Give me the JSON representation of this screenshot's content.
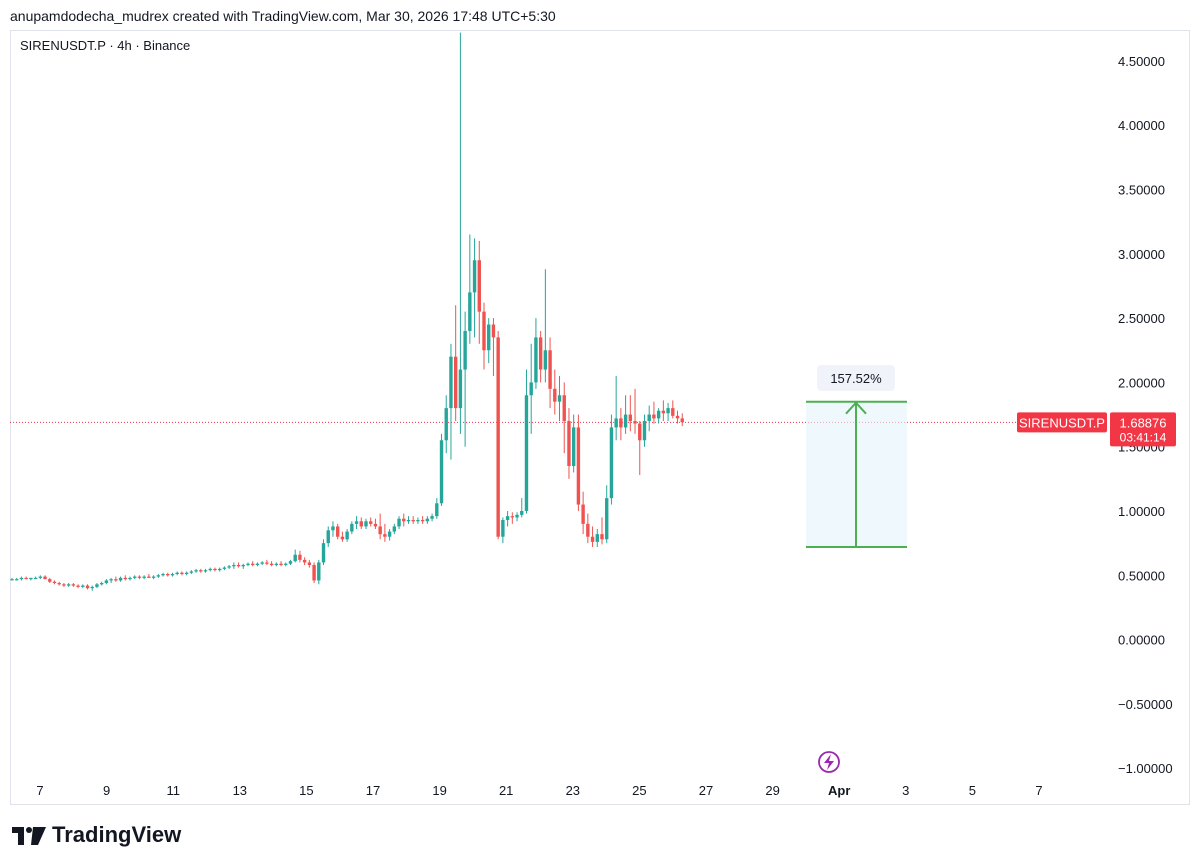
{
  "header": {
    "caption": "anupamdodecha_mudrex created with TradingView.com, Mar 30, 2026 17:48 UTC+5:30"
  },
  "symbol": {
    "label": "SIRENUSDT.P · 4h · Binance"
  },
  "price_tag": {
    "symbol": "SIRENUSDT.P",
    "price": "1.68876",
    "countdown": "03:41:14"
  },
  "measure": {
    "label": "157.52%"
  },
  "footer": {
    "brand": "TradingView"
  },
  "colors": {
    "up": "#26a69a",
    "down": "#ef5350",
    "measure": "#4caf50",
    "tag": "#f23645",
    "alert": "#9c27b0"
  },
  "icons": {
    "alert": "lightning-icon",
    "logo": "tradingview-logo-icon"
  },
  "chart_data": {
    "type": "candlestick",
    "y_ticks": [
      "4.50000",
      "4.00000",
      "3.50000",
      "3.00000",
      "2.50000",
      "2.00000",
      "1.50000",
      "1.00000",
      "0.50000",
      "0.00000",
      "−0.50000",
      "−1.00000"
    ],
    "x_ticks": [
      "7",
      "9",
      "11",
      "13",
      "15",
      "17",
      "19",
      "21",
      "23",
      "25",
      "27",
      "29",
      "Apr",
      "3",
      "5",
      "7"
    ],
    "ylim": [
      -1.0,
      4.72
    ],
    "last_price": 1.68876,
    "measure_range": {
      "from": 0.72,
      "to": 1.85,
      "change_pct": "157.52%"
    },
    "interval": "4h",
    "candles_note": "OHLC values estimated from chart",
    "candles": [
      [
        0.47,
        0.48,
        0.46,
        0.47
      ],
      [
        0.47,
        0.48,
        0.46,
        0.47
      ],
      [
        0.47,
        0.49,
        0.46,
        0.48
      ],
      [
        0.48,
        0.49,
        0.47,
        0.47
      ],
      [
        0.47,
        0.48,
        0.46,
        0.48
      ],
      [
        0.48,
        0.49,
        0.47,
        0.48
      ],
      [
        0.48,
        0.5,
        0.47,
        0.49
      ],
      [
        0.49,
        0.5,
        0.47,
        0.47
      ],
      [
        0.47,
        0.48,
        0.44,
        0.45
      ],
      [
        0.45,
        0.46,
        0.43,
        0.44
      ],
      [
        0.44,
        0.45,
        0.42,
        0.43
      ],
      [
        0.43,
        0.44,
        0.41,
        0.42
      ],
      [
        0.42,
        0.44,
        0.41,
        0.43
      ],
      [
        0.43,
        0.44,
        0.41,
        0.42
      ],
      [
        0.42,
        0.43,
        0.4,
        0.41
      ],
      [
        0.41,
        0.43,
        0.4,
        0.42
      ],
      [
        0.42,
        0.43,
        0.39,
        0.4
      ],
      [
        0.4,
        0.42,
        0.38,
        0.41
      ],
      [
        0.41,
        0.44,
        0.4,
        0.43
      ],
      [
        0.43,
        0.45,
        0.42,
        0.44
      ],
      [
        0.44,
        0.47,
        0.43,
        0.46
      ],
      [
        0.46,
        0.48,
        0.44,
        0.47
      ],
      [
        0.47,
        0.49,
        0.45,
        0.46
      ],
      [
        0.46,
        0.49,
        0.45,
        0.48
      ],
      [
        0.48,
        0.5,
        0.46,
        0.47
      ],
      [
        0.47,
        0.49,
        0.46,
        0.48
      ],
      [
        0.48,
        0.5,
        0.47,
        0.49
      ],
      [
        0.49,
        0.5,
        0.47,
        0.48
      ],
      [
        0.48,
        0.5,
        0.47,
        0.49
      ],
      [
        0.49,
        0.51,
        0.48,
        0.48
      ],
      [
        0.48,
        0.5,
        0.47,
        0.49
      ],
      [
        0.49,
        0.51,
        0.48,
        0.5
      ],
      [
        0.5,
        0.52,
        0.49,
        0.51
      ],
      [
        0.51,
        0.52,
        0.49,
        0.5
      ],
      [
        0.5,
        0.52,
        0.49,
        0.51
      ],
      [
        0.51,
        0.53,
        0.5,
        0.52
      ],
      [
        0.52,
        0.53,
        0.5,
        0.51
      ],
      [
        0.51,
        0.53,
        0.5,
        0.52
      ],
      [
        0.52,
        0.54,
        0.51,
        0.53
      ],
      [
        0.53,
        0.55,
        0.52,
        0.54
      ],
      [
        0.54,
        0.55,
        0.52,
        0.53
      ],
      [
        0.53,
        0.55,
        0.52,
        0.54
      ],
      [
        0.54,
        0.56,
        0.53,
        0.55
      ],
      [
        0.55,
        0.56,
        0.53,
        0.54
      ],
      [
        0.54,
        0.56,
        0.53,
        0.55
      ],
      [
        0.55,
        0.57,
        0.54,
        0.56
      ],
      [
        0.56,
        0.58,
        0.55,
        0.57
      ],
      [
        0.57,
        0.6,
        0.55,
        0.58
      ],
      [
        0.58,
        0.6,
        0.56,
        0.57
      ],
      [
        0.57,
        0.59,
        0.55,
        0.58
      ],
      [
        0.58,
        0.6,
        0.57,
        0.59
      ],
      [
        0.59,
        0.61,
        0.57,
        0.58
      ],
      [
        0.58,
        0.6,
        0.57,
        0.59
      ],
      [
        0.59,
        0.61,
        0.58,
        0.6
      ],
      [
        0.6,
        0.62,
        0.58,
        0.59
      ],
      [
        0.59,
        0.61,
        0.57,
        0.58
      ],
      [
        0.58,
        0.6,
        0.57,
        0.59
      ],
      [
        0.59,
        0.61,
        0.57,
        0.58
      ],
      [
        0.58,
        0.6,
        0.57,
        0.59
      ],
      [
        0.59,
        0.62,
        0.58,
        0.61
      ],
      [
        0.61,
        0.7,
        0.6,
        0.66
      ],
      [
        0.66,
        0.69,
        0.6,
        0.62
      ],
      [
        0.62,
        0.64,
        0.58,
        0.6
      ],
      [
        0.6,
        0.62,
        0.56,
        0.58
      ],
      [
        0.58,
        0.6,
        0.44,
        0.46
      ],
      [
        0.46,
        0.62,
        0.43,
        0.6
      ],
      [
        0.6,
        0.78,
        0.58,
        0.75
      ],
      [
        0.75,
        0.88,
        0.72,
        0.85
      ],
      [
        0.85,
        0.92,
        0.8,
        0.88
      ],
      [
        0.88,
        0.9,
        0.78,
        0.8
      ],
      [
        0.8,
        0.84,
        0.76,
        0.78
      ],
      [
        0.78,
        0.86,
        0.76,
        0.84
      ],
      [
        0.84,
        0.92,
        0.82,
        0.9
      ],
      [
        0.9,
        0.96,
        0.86,
        0.92
      ],
      [
        0.92,
        0.95,
        0.86,
        0.88
      ],
      [
        0.88,
        0.94,
        0.86,
        0.92
      ],
      [
        0.92,
        0.95,
        0.88,
        0.9
      ],
      [
        0.9,
        0.94,
        0.86,
        0.88
      ],
      [
        0.88,
        0.98,
        0.78,
        0.82
      ],
      [
        0.82,
        0.9,
        0.76,
        0.8
      ],
      [
        0.8,
        0.86,
        0.77,
        0.84
      ],
      [
        0.84,
        0.9,
        0.82,
        0.88
      ],
      [
        0.88,
        0.96,
        0.86,
        0.94
      ],
      [
        0.94,
        0.98,
        0.88,
        0.92
      ],
      [
        0.92,
        0.96,
        0.9,
        0.93
      ],
      [
        0.93,
        0.96,
        0.9,
        0.92
      ],
      [
        0.92,
        0.95,
        0.9,
        0.93
      ],
      [
        0.93,
        0.96,
        0.9,
        0.92
      ],
      [
        0.92,
        0.96,
        0.9,
        0.94
      ],
      [
        0.94,
        0.98,
        0.92,
        0.96
      ],
      [
        0.96,
        1.1,
        0.94,
        1.06
      ],
      [
        1.06,
        1.6,
        1.04,
        1.55
      ],
      [
        1.55,
        1.9,
        1.45,
        1.8
      ],
      [
        1.8,
        2.3,
        1.4,
        2.2
      ],
      [
        2.2,
        2.6,
        1.7,
        1.8
      ],
      [
        1.8,
        4.72,
        1.6,
        2.1
      ],
      [
        2.1,
        2.55,
        1.5,
        2.4
      ],
      [
        2.4,
        3.15,
        2.3,
        2.7
      ],
      [
        2.7,
        3.12,
        2.35,
        2.95
      ],
      [
        2.95,
        3.1,
        2.3,
        2.55
      ],
      [
        2.55,
        2.62,
        2.1,
        2.25
      ],
      [
        2.25,
        2.5,
        2.15,
        2.45
      ],
      [
        2.45,
        2.5,
        2.05,
        2.35
      ],
      [
        2.35,
        2.4,
        0.78,
        0.8
      ],
      [
        0.8,
        0.95,
        0.75,
        0.93
      ],
      [
        0.93,
        1.0,
        0.88,
        0.96
      ],
      [
        0.96,
        0.99,
        0.9,
        0.95
      ],
      [
        0.95,
        0.99,
        0.92,
        0.97
      ],
      [
        0.97,
        1.1,
        0.95,
        1.0
      ],
      [
        1.0,
        2.1,
        0.98,
        1.9
      ],
      [
        1.9,
        2.3,
        1.6,
        2.0
      ],
      [
        2.0,
        2.5,
        1.95,
        2.35
      ],
      [
        2.35,
        2.4,
        2.0,
        2.1
      ],
      [
        2.1,
        2.88,
        2.0,
        2.25
      ],
      [
        2.25,
        2.35,
        1.8,
        1.95
      ],
      [
        1.95,
        2.1,
        1.75,
        1.85
      ],
      [
        1.85,
        2.05,
        1.7,
        1.9
      ],
      [
        1.9,
        2.0,
        1.45,
        1.7
      ],
      [
        1.7,
        1.8,
        1.25,
        1.35
      ],
      [
        1.35,
        1.75,
        1.3,
        1.65
      ],
      [
        1.65,
        1.75,
        1.0,
        1.05
      ],
      [
        1.05,
        1.15,
        0.82,
        0.9
      ],
      [
        0.9,
        0.98,
        0.75,
        0.8
      ],
      [
        0.8,
        0.88,
        0.72,
        0.76
      ],
      [
        0.76,
        0.86,
        0.72,
        0.82
      ],
      [
        0.82,
        0.95,
        0.74,
        0.78
      ],
      [
        0.78,
        1.2,
        0.75,
        1.1
      ],
      [
        1.1,
        1.75,
        1.05,
        1.65
      ],
      [
        1.65,
        2.05,
        1.55,
        1.72
      ],
      [
        1.72,
        1.8,
        1.55,
        1.65
      ],
      [
        1.65,
        1.9,
        1.6,
        1.75
      ],
      [
        1.75,
        1.9,
        1.62,
        1.7
      ],
      [
        1.7,
        1.95,
        1.6,
        1.68
      ],
      [
        1.68,
        1.7,
        1.28,
        1.55
      ],
      [
        1.55,
        1.75,
        1.5,
        1.7
      ],
      [
        1.7,
        1.82,
        1.62,
        1.75
      ],
      [
        1.75,
        1.85,
        1.68,
        1.72
      ],
      [
        1.72,
        1.8,
        1.68,
        1.78
      ],
      [
        1.78,
        1.86,
        1.7,
        1.76
      ],
      [
        1.76,
        1.84,
        1.7,
        1.8
      ],
      [
        1.8,
        1.86,
        1.72,
        1.74
      ],
      [
        1.74,
        1.78,
        1.68,
        1.72
      ],
      [
        1.72,
        1.76,
        1.66,
        1.69
      ]
    ]
  }
}
